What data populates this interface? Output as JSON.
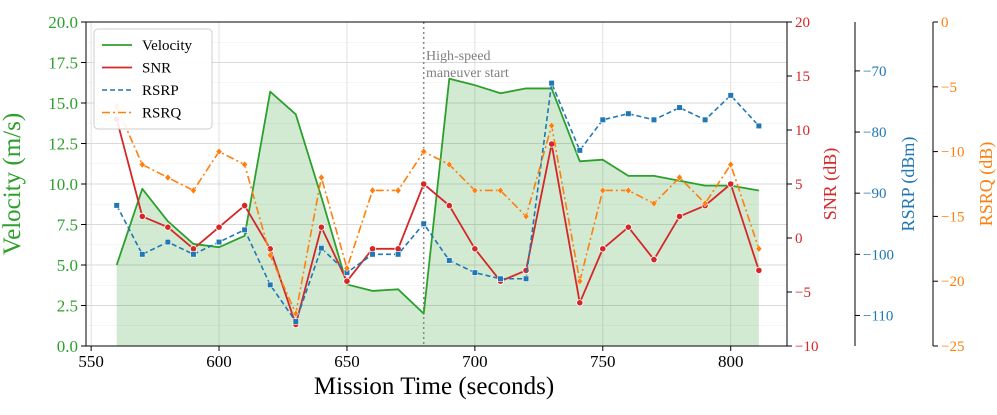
{
  "chart_data": {
    "type": "line",
    "title": "",
    "xlabel": "Mission Time (seconds)",
    "xlim": [
      548,
      822
    ],
    "xticks": [
      550,
      600,
      650,
      700,
      750,
      800
    ],
    "grid": true,
    "annotation": {
      "text": "High-speed maneuver start",
      "x": 680
    },
    "axes": {
      "velocity": {
        "label": "Velocity (m/s)",
        "range": [
          0,
          20
        ],
        "ticks": [
          "0.0",
          "2.5",
          "5.0",
          "7.5",
          "10.0",
          "12.5",
          "15.0",
          "17.5",
          "20.0"
        ],
        "color": "#2ca02c"
      },
      "snr": {
        "label": "SNR (dB)",
        "range": [
          -10,
          20
        ],
        "ticks": [
          "−10",
          "−5",
          "0",
          "5",
          "10",
          "15",
          "20"
        ],
        "color": "#d62728"
      },
      "rsrp": {
        "label": "RSRP (dBm)",
        "range": [
          -115,
          -62
        ],
        "ticks": [
          "−110",
          "−100",
          "−90",
          "−80",
          "−70"
        ],
        "color": "#1f77b4"
      },
      "rsrq": {
        "label": "RSRQ (dB)",
        "range": [
          -25,
          0
        ],
        "ticks": [
          "−25",
          "−20",
          "−15",
          "−10",
          "−5",
          "0"
        ],
        "color": "#ff7f0e"
      }
    },
    "legend": {
      "position": "top-left",
      "entries": [
        "Velocity",
        "SNR",
        "RSRP",
        "RSRQ"
      ]
    },
    "series": [
      {
        "name": "Velocity",
        "axis": "velocity",
        "style": "solid-fill",
        "x": [
          560,
          570,
          580,
          590,
          600,
          610,
          620,
          630,
          640,
          650,
          660,
          670,
          680,
          690,
          700,
          710,
          720,
          730,
          741,
          750,
          760,
          770,
          780,
          790,
          800,
          811
        ],
        "values": [
          5.0,
          9.7,
          7.7,
          6.3,
          6.1,
          6.8,
          15.7,
          14.3,
          9.2,
          3.8,
          3.4,
          3.5,
          2.0,
          16.5,
          16.1,
          15.6,
          15.9,
          15.9,
          11.4,
          11.5,
          10.5,
          10.5,
          10.2,
          9.9,
          9.9,
          9.6
        ]
      },
      {
        "name": "SNR",
        "axis": "snr",
        "style": "solid-circle",
        "x": [
          560,
          570,
          580,
          590,
          600,
          610,
          620,
          630,
          640,
          650,
          660,
          670,
          680,
          690,
          700,
          710,
          720,
          730,
          741,
          750,
          760,
          770,
          780,
          790,
          800,
          811
        ],
        "values": [
          11,
          2,
          1,
          -1,
          1,
          3,
          -1,
          -8,
          1,
          -4,
          -1,
          -1,
          5,
          3,
          -1,
          -4,
          -3,
          8.7,
          -6,
          -1,
          1,
          -2,
          2,
          3,
          5,
          -3
        ]
      },
      {
        "name": "RSRP",
        "axis": "rsrp",
        "style": "dashed-square",
        "x": [
          560,
          570,
          580,
          590,
          600,
          610,
          620,
          630,
          640,
          650,
          660,
          670,
          680,
          690,
          700,
          710,
          720,
          730,
          741,
          750,
          760,
          770,
          780,
          790,
          800,
          811
        ],
        "values": [
          -92,
          -100,
          -98,
          -100,
          -98,
          -96,
          -105,
          -111,
          -99,
          -103,
          -100,
          -100,
          -95,
          -101,
          -103,
          -104,
          -104,
          -72,
          -83,
          -78,
          -77,
          -78,
          -76,
          -78,
          -74,
          -79
        ]
      },
      {
        "name": "RSRQ",
        "axis": "rsrq",
        "style": "dashdot-diamond",
        "x": [
          560,
          570,
          580,
          590,
          600,
          610,
          620,
          630,
          640,
          650,
          660,
          670,
          680,
          690,
          700,
          710,
          720,
          730,
          741,
          750,
          760,
          770,
          780,
          790,
          800,
          811
        ],
        "values": [
          -6.5,
          -11,
          -12,
          -13,
          -10,
          -11,
          -18,
          -22.5,
          -12,
          -19,
          -13,
          -13,
          -10,
          -11,
          -13,
          -13,
          -15,
          -8,
          -20,
          -13,
          -13,
          -14,
          -12,
          -14,
          -11,
          -17.5
        ]
      }
    ]
  }
}
